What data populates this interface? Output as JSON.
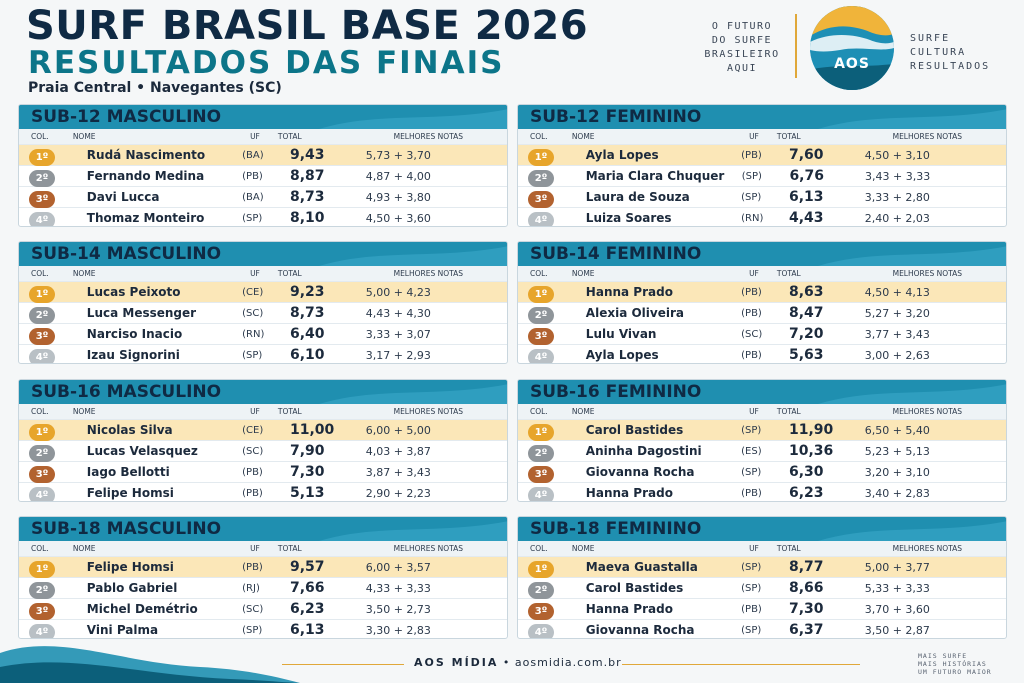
{
  "header": {
    "title": "SURF BRASIL BASE 2026",
    "subtitle": "RESULTADOS DAS FINAIS",
    "location": "Praia Central • Navegantes (SC)",
    "tagline": [
      "O FUTURO",
      "DO SURFE",
      "BRASILEIRO",
      "AQUI"
    ],
    "logo_text": "AOS",
    "brand_words": [
      "SURFE",
      "CULTURA",
      "RESULTADOS"
    ]
  },
  "columns": {
    "pos": "COL.",
    "name": "NOME",
    "uf": "UF",
    "total": "TOTAL",
    "best": "MELHORES NOTAS"
  },
  "colors": {
    "header_bar": "#1f8fb0",
    "title_dark": "#0f2a44",
    "title_teal": "#0c7589",
    "gold": "#e7a52b",
    "silver": "#8f959a",
    "bronze": "#b2622f",
    "fourth": "#b9c0c5",
    "first_row": "#fbe7b8"
  },
  "categories": [
    {
      "title": "SUB-12 MASCULINO",
      "rows": [
        {
          "pos": "1º",
          "name": "Rudá Nascimento",
          "uf": "(BA)",
          "total": "9,43",
          "best": "5,73 + 3,70"
        },
        {
          "pos": "2º",
          "name": "Fernando Medina",
          "uf": "(PB)",
          "total": "8,87",
          "best": "4,87 + 4,00"
        },
        {
          "pos": "3º",
          "name": "Davi Lucca",
          "uf": "(BA)",
          "total": "8,73",
          "best": "4,93 + 3,80"
        },
        {
          "pos": "4º",
          "name": "Thomaz Monteiro",
          "uf": "(SP)",
          "total": "8,10",
          "best": "4,50 + 3,60"
        }
      ]
    },
    {
      "title": "SUB-12 FEMININO",
      "rows": [
        {
          "pos": "1º",
          "name": "Ayla Lopes",
          "uf": "(PB)",
          "total": "7,60",
          "best": "4,50 + 3,10"
        },
        {
          "pos": "2º",
          "name": "Maria Clara Chuquer",
          "uf": "(SP)",
          "total": "6,76",
          "best": "3,43 + 3,33"
        },
        {
          "pos": "3º",
          "name": "Laura de Souza",
          "uf": "(SP)",
          "total": "6,13",
          "best": "3,33 + 2,80"
        },
        {
          "pos": "4º",
          "name": "Luiza Soares",
          "uf": "(RN)",
          "total": "4,43",
          "best": "2,40 + 2,03"
        }
      ]
    },
    {
      "title": "SUB-14 MASCULINO",
      "rows": [
        {
          "pos": "1º",
          "name": "Lucas Peixoto",
          "uf": "(CE)",
          "total": "9,23",
          "best": "5,00 + 4,23"
        },
        {
          "pos": "2º",
          "name": "Luca Messenger",
          "uf": "(SC)",
          "total": "8,73",
          "best": "4,43 + 4,30"
        },
        {
          "pos": "3º",
          "name": "Narciso Inacio",
          "uf": "(RN)",
          "total": "6,40",
          "best": "3,33 + 3,07"
        },
        {
          "pos": "4º",
          "name": "Izau Signorini",
          "uf": "(SP)",
          "total": "6,10",
          "best": "3,17 + 2,93"
        }
      ]
    },
    {
      "title": "SUB-14 FEMININO",
      "rows": [
        {
          "pos": "1º",
          "name": "Hanna Prado",
          "uf": "(PB)",
          "total": "8,63",
          "best": "4,50 + 4,13"
        },
        {
          "pos": "2º",
          "name": "Alexia Oliveira",
          "uf": "(PB)",
          "total": "8,47",
          "best": "5,27 + 3,20"
        },
        {
          "pos": "3º",
          "name": "Lulu Vivan",
          "uf": "(SC)",
          "total": "7,20",
          "best": "3,77 + 3,43"
        },
        {
          "pos": "4º",
          "name": "Ayla Lopes",
          "uf": "(PB)",
          "total": "5,63",
          "best": "3,00 + 2,63"
        }
      ]
    },
    {
      "title": "SUB-16 MASCULINO",
      "rows": [
        {
          "pos": "1º",
          "name": "Nicolas Silva",
          "uf": "(CE)",
          "total": "11,00",
          "best": "6,00 + 5,00"
        },
        {
          "pos": "2º",
          "name": "Lucas Velasquez",
          "uf": "(SC)",
          "total": "7,90",
          "best": "4,03 + 3,87"
        },
        {
          "pos": "3º",
          "name": "Iago Bellotti",
          "uf": "(PB)",
          "total": "7,30",
          "best": "3,87 + 3,43"
        },
        {
          "pos": "4º",
          "name": "Felipe Homsi",
          "uf": "(PB)",
          "total": "5,13",
          "best": "2,90 + 2,23"
        }
      ]
    },
    {
      "title": "SUB-16 FEMININO",
      "rows": [
        {
          "pos": "1º",
          "name": "Carol Bastides",
          "uf": "(SP)",
          "total": "11,90",
          "best": "6,50 + 5,40"
        },
        {
          "pos": "2º",
          "name": "Aninha Dagostini",
          "uf": "(ES)",
          "total": "10,36",
          "best": "5,23 + 5,13"
        },
        {
          "pos": "3º",
          "name": "Giovanna Rocha",
          "uf": "(SP)",
          "total": "6,30",
          "best": "3,20 + 3,10"
        },
        {
          "pos": "4º",
          "name": "Hanna Prado",
          "uf": "(PB)",
          "total": "6,23",
          "best": "3,40 + 2,83"
        }
      ]
    },
    {
      "title": "SUB-18 MASCULINO",
      "rows": [
        {
          "pos": "1º",
          "name": "Felipe Homsi",
          "uf": "(PB)",
          "total": "9,57",
          "best": "6,00 + 3,57"
        },
        {
          "pos": "2º",
          "name": "Pablo Gabriel",
          "uf": "(RJ)",
          "total": "7,66",
          "best": "4,33 + 3,33"
        },
        {
          "pos": "3º",
          "name": "Michel Demétrio",
          "uf": "(SC)",
          "total": "6,23",
          "best": "3,50 + 2,73"
        },
        {
          "pos": "4º",
          "name": "Vini Palma",
          "uf": "(SP)",
          "total": "6,13",
          "best": "3,30 + 2,83"
        }
      ]
    },
    {
      "title": "SUB-18 FEMININO",
      "rows": [
        {
          "pos": "1º",
          "name": "Maeva Guastalla",
          "uf": "(SP)",
          "total": "8,77",
          "best": "5,00 + 3,77"
        },
        {
          "pos": "2º",
          "name": "Carol Bastides",
          "uf": "(SP)",
          "total": "8,66",
          "best": "5,33 + 3,33"
        },
        {
          "pos": "3º",
          "name": "Hanna Prado",
          "uf": "(PB)",
          "total": "7,30",
          "best": "3,70 + 3,60"
        },
        {
          "pos": "4º",
          "name": "Giovanna Rocha",
          "uf": "(SP)",
          "total": "6,37",
          "best": "3,50 + 2,87"
        }
      ]
    }
  ],
  "footer": {
    "brand": "AOS MÍDIA",
    "separator": "•",
    "url": "aosmidia.com.br",
    "slogan": [
      "MAIS SURFE",
      "MAIS HISTÓRIAS",
      "UM FUTURO MAIOR"
    ]
  }
}
